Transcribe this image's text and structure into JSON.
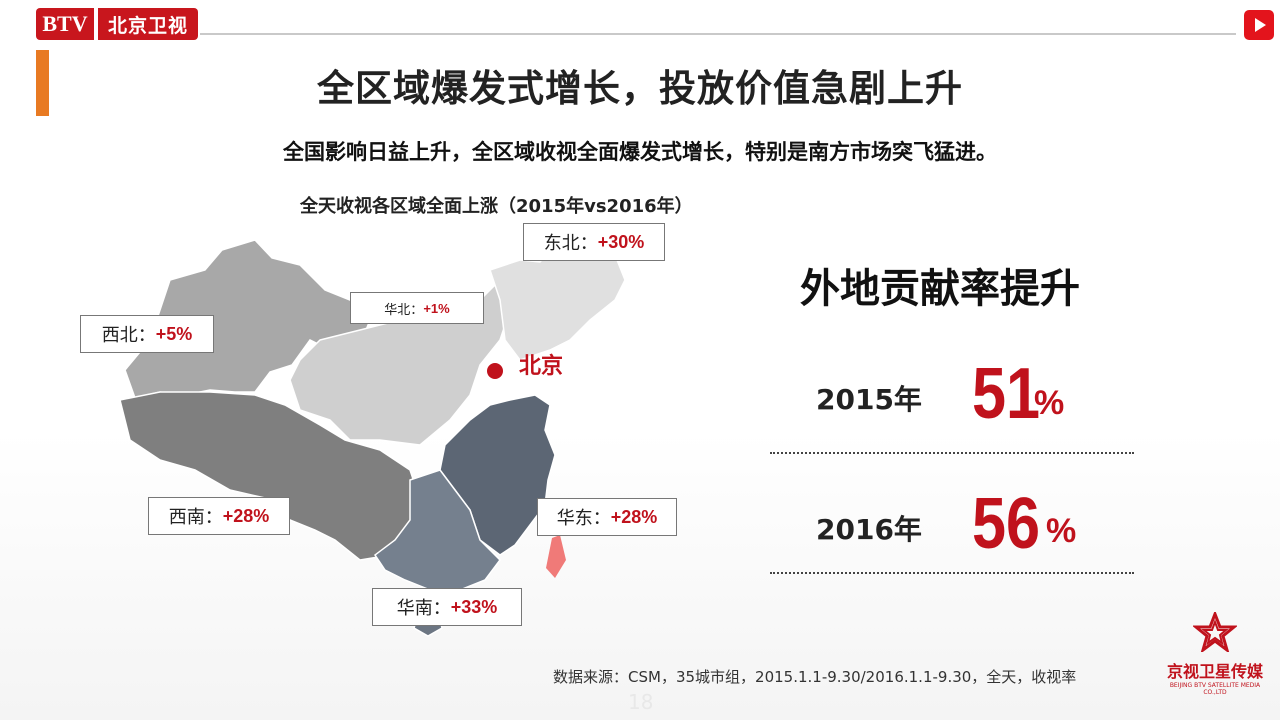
{
  "brand": {
    "logo_btv": "BTV",
    "logo_cn": "北京卫视"
  },
  "title": "全区域爆发式增长，投放价值急剧上升",
  "subtitle": "全国影响日益上升，全区域收视全面爆发式增长，特别是南方市场突飞猛进。",
  "map": {
    "title": "全天收视各区域全面上涨（2015年vs2016年）",
    "beijing": "北京",
    "regions": [
      {
        "name": "东北：",
        "value": "+30%"
      },
      {
        "name": "华北：",
        "value": "+1%"
      },
      {
        "name": "西北：",
        "value": "+5%"
      },
      {
        "name": "西南：",
        "value": "+28%"
      },
      {
        "name": "华东：",
        "value": "+28%"
      },
      {
        "name": "华南：",
        "value": "+33%"
      }
    ]
  },
  "contribution": {
    "heading": "外地贡献率提升",
    "rows": [
      {
        "year": "2015年",
        "value": "51",
        "unit": "%"
      },
      {
        "year": "2016年",
        "value": "56",
        "unit": "%"
      }
    ]
  },
  "source": "数据来源：CSM，35城市组，2015.1.1-9.30/2016.1.1-9.30，全天，收视率",
  "page_number": "18",
  "media_logo": {
    "cn": "京视卫星传媒",
    "en": "BEIJING BTV SATELLITE MEDIA CO.,LTD"
  },
  "colors": {
    "accent_red": "#c0121c",
    "accent_orange": "#e87a22"
  }
}
